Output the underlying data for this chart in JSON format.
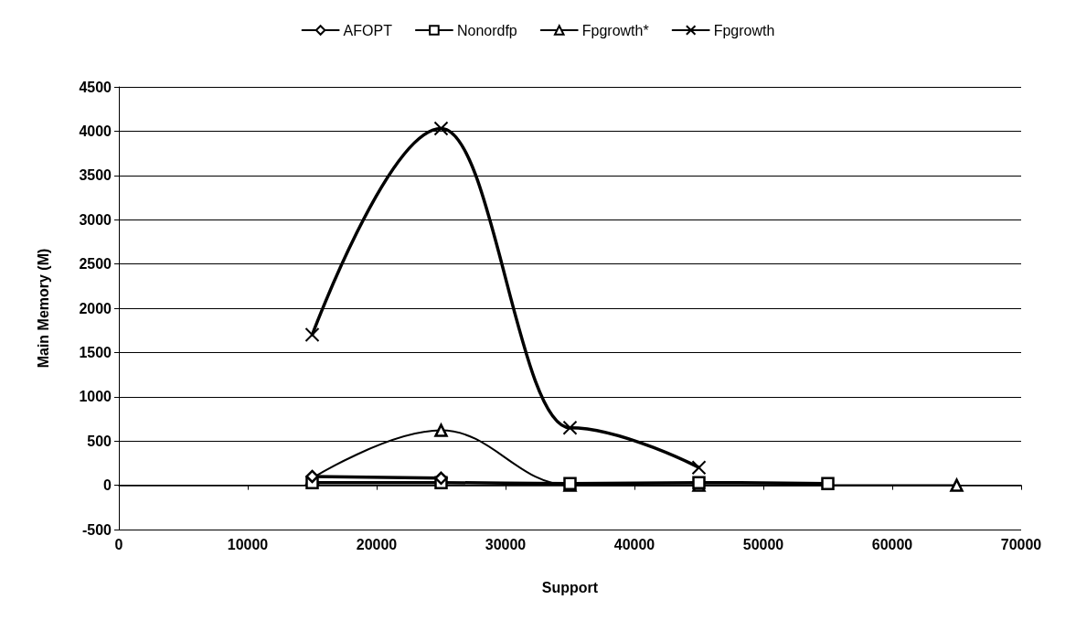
{
  "chart_data": {
    "type": "line",
    "xlabel": "Support",
    "ylabel": "Main Memory (M)",
    "xlim": [
      0,
      70000
    ],
    "xticks": [
      0,
      10000,
      20000,
      30000,
      40000,
      50000,
      60000,
      70000
    ],
    "ylim": [
      -500,
      4500
    ],
    "yticks": [
      -500,
      0,
      500,
      1000,
      1500,
      2000,
      2500,
      3000,
      3500,
      4000,
      4500
    ],
    "grid": "y",
    "legend": "top",
    "line_style": "solid",
    "series": [
      {
        "name": "AFOPT",
        "color": "#000000",
        "marker": "diamond",
        "x": [
          15000,
          25000
        ],
        "values": [
          100,
          80
        ]
      },
      {
        "name": "Nonordfp",
        "color": "#000000",
        "marker": "square",
        "x": [
          15000,
          25000,
          35000,
          45000,
          55000
        ],
        "values": [
          30,
          30,
          20,
          30,
          20
        ]
      },
      {
        "name": "Fpgrowth*",
        "color": "#000000",
        "marker": "triangle",
        "x": [
          15000,
          25000,
          35000,
          45000,
          65000
        ],
        "values": [
          80,
          620,
          0,
          0,
          0
        ]
      },
      {
        "name": "Fpgrowth",
        "color": "#000000",
        "marker": "cross",
        "x": [
          15000,
          25000,
          35000,
          45000
        ],
        "values": [
          1700,
          4030,
          650,
          200
        ]
      }
    ]
  }
}
